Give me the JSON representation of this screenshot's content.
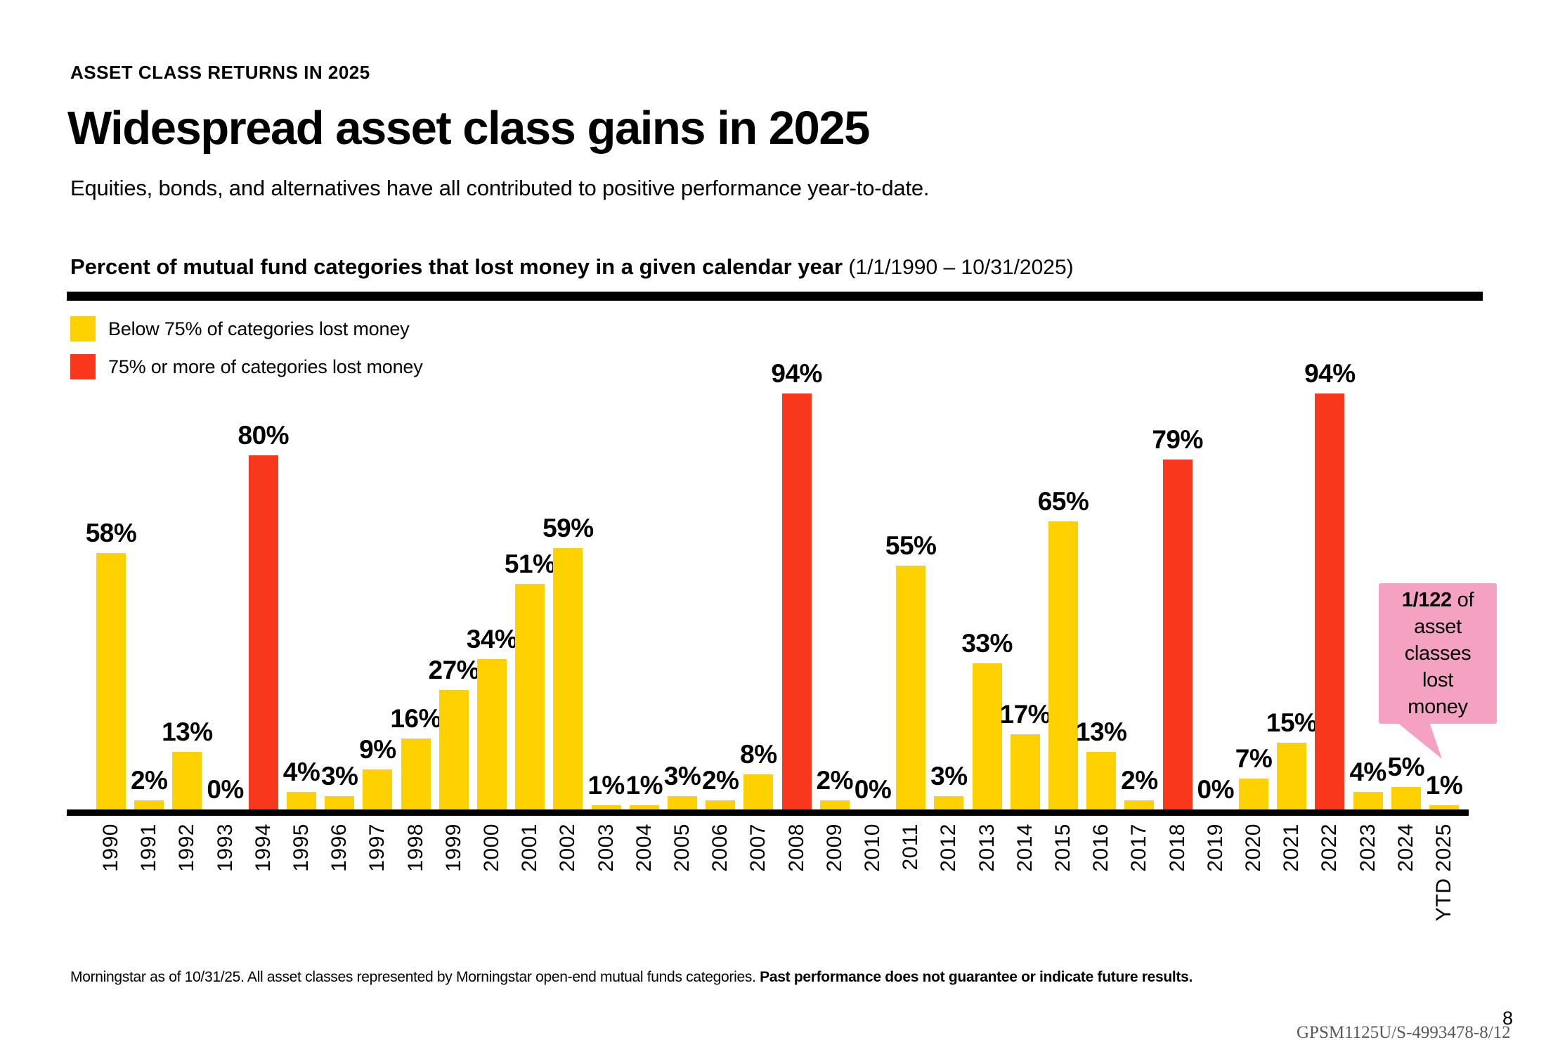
{
  "header": {
    "eyebrow": "ASSET CLASS RETURNS IN 2025",
    "title": "Widespread asset class gains in 2025",
    "subtitle": "Equities, bonds, and alternatives have all contributed to positive performance year-to-date."
  },
  "chart_heading": {
    "bold": "Percent of mutual fund categories that lost money in a given calendar year",
    "period": " (1/1/1990 – 10/31/2025)"
  },
  "legend": [
    {
      "label": "Below 75% of categories lost money",
      "color_key": "yellow"
    },
    {
      "label": "75% or more of categories lost money",
      "color_key": "red"
    }
  ],
  "colors": {
    "yellow": "#FFD101",
    "red": "#F8371D",
    "pink": "#F5A1C1",
    "axis_black": "#000000"
  },
  "callout": {
    "bold": "1/122",
    "suffix": " of",
    "lines": [
      "asset",
      "classes",
      "lost",
      "money"
    ]
  },
  "footnote": {
    "regular": "Morningstar as of 10/31/25. All asset classes represented by Morningstar open-end mutual funds categories. ",
    "bold": "Past performance does not guarantee or indicate future results."
  },
  "footer": {
    "doc_id": "GPSM1125U/S-4993478-8/12",
    "page_number": "8"
  },
  "chart_data": {
    "type": "bar",
    "title": "Percent of mutual fund categories that lost money in a given calendar year (1/1/1990 – 10/31/2025)",
    "xlabel": "",
    "ylabel": "Percent of categories that lost money",
    "ylim": [
      0,
      100
    ],
    "grid": false,
    "legend_position": "top-left",
    "value_label_format": "{v}%",
    "threshold_pct": 75,
    "threshold_rule": "bars with value >= 75 are red, otherwise yellow",
    "categories": [
      "1990",
      "1991",
      "1992",
      "1993",
      "1994",
      "1995",
      "1996",
      "1997",
      "1998",
      "1999",
      "2000",
      "2001",
      "2002",
      "2003",
      "2004",
      "2005",
      "2006",
      "2007",
      "2008",
      "2009",
      "2010",
      "2011",
      "2012",
      "2013",
      "2014",
      "2015",
      "2016",
      "2017",
      "2018",
      "2019",
      "2020",
      "2021",
      "2022",
      "2023",
      "2024",
      "YTD 2025"
    ],
    "values": [
      58,
      2,
      13,
      0,
      80,
      4,
      3,
      9,
      16,
      27,
      34,
      51,
      59,
      1,
      1,
      3,
      2,
      8,
      94,
      2,
      0,
      55,
      3,
      33,
      17,
      65,
      13,
      2,
      79,
      0,
      7,
      15,
      94,
      4,
      5,
      1
    ],
    "annotation": "1/122 of asset classes lost money (YTD 2025)"
  }
}
